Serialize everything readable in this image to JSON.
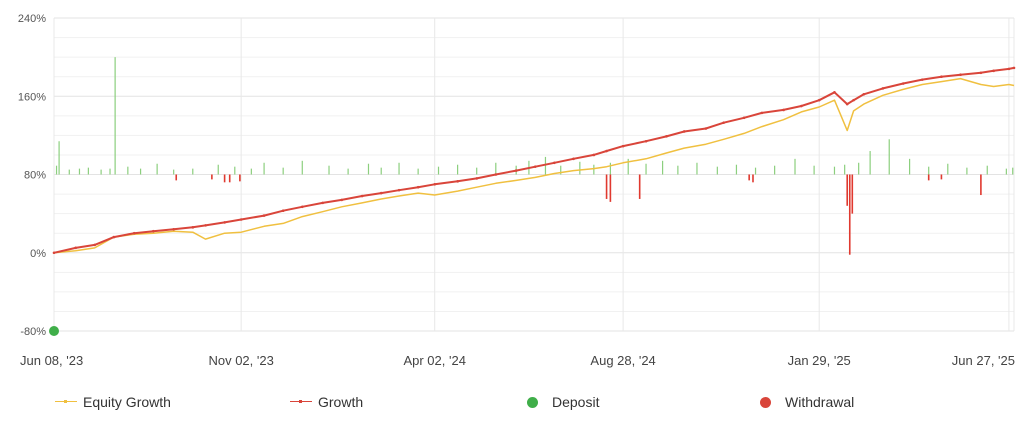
{
  "chart_data": {
    "type": "line",
    "title": "",
    "xlabel": "",
    "ylabel": "",
    "x_ticks": [
      "Jun 08, '23",
      "Nov 02, '23",
      "Apr 02, '24",
      "Aug 28, '24",
      "Jan 29, '25",
      "Jun 27, '25"
    ],
    "x_range": [
      "2023-06-08",
      "2025-07-01"
    ],
    "y_ticks": [
      "240%",
      "160%",
      "80%",
      "0%",
      "-80%"
    ],
    "y_range": [
      -80,
      240
    ],
    "grid": true,
    "legend_position": "bottom",
    "colors": {
      "equity": "#f0c040",
      "growth": "#d9453a",
      "deposit": "#3fae49",
      "withdrawal": "#d9453a",
      "volume_up": "#8ccf7e",
      "volume_down": "#e0392f",
      "grid": "#e8e8e8"
    },
    "series": [
      {
        "name": "Equity Growth",
        "x": [
          "2023-06-08",
          "2023-06-25",
          "2023-07-10",
          "2023-07-25",
          "2023-08-10",
          "2023-08-25",
          "2023-09-10",
          "2023-09-25",
          "2023-10-05",
          "2023-10-20",
          "2023-11-02",
          "2023-11-20",
          "2023-12-05",
          "2023-12-20",
          "2024-01-05",
          "2024-01-20",
          "2024-02-05",
          "2024-02-20",
          "2024-03-05",
          "2024-03-20",
          "2024-04-02",
          "2024-04-20",
          "2024-05-05",
          "2024-05-20",
          "2024-06-05",
          "2024-06-20",
          "2024-07-05",
          "2024-07-20",
          "2024-08-05",
          "2024-08-15",
          "2024-08-28",
          "2024-09-15",
          "2024-10-01",
          "2024-10-15",
          "2024-11-01",
          "2024-11-15",
          "2024-12-01",
          "2024-12-15",
          "2025-01-01",
          "2025-01-15",
          "2025-01-29",
          "2025-02-10",
          "2025-02-20",
          "2025-02-25",
          "2025-03-05",
          "2025-03-20",
          "2025-04-05",
          "2025-04-20",
          "2025-05-05",
          "2025-05-20",
          "2025-06-05",
          "2025-06-15",
          "2025-06-27",
          "2025-07-01"
        ],
        "y": [
          0,
          2,
          5,
          16,
          19,
          20,
          22,
          21,
          14,
          20,
          21,
          27,
          30,
          37,
          42,
          47,
          51,
          55,
          58,
          61,
          59,
          63,
          67,
          71,
          74,
          77,
          81,
          84,
          86,
          88,
          92,
          96,
          102,
          107,
          111,
          116,
          122,
          129,
          136,
          144,
          149,
          156,
          125,
          145,
          152,
          161,
          167,
          172,
          175,
          178,
          172,
          170,
          172,
          171
        ]
      },
      {
        "name": "Growth",
        "x": [
          "2023-06-08",
          "2023-06-25",
          "2023-07-10",
          "2023-07-25",
          "2023-08-10",
          "2023-08-25",
          "2023-09-10",
          "2023-09-25",
          "2023-10-05",
          "2023-10-20",
          "2023-11-02",
          "2023-11-20",
          "2023-12-05",
          "2023-12-20",
          "2024-01-05",
          "2024-01-20",
          "2024-02-05",
          "2024-02-20",
          "2024-03-05",
          "2024-03-20",
          "2024-04-02",
          "2024-04-20",
          "2024-05-05",
          "2024-05-20",
          "2024-06-05",
          "2024-06-20",
          "2024-07-05",
          "2024-07-20",
          "2024-08-05",
          "2024-08-15",
          "2024-08-28",
          "2024-09-15",
          "2024-10-01",
          "2024-10-15",
          "2024-11-01",
          "2024-11-15",
          "2024-12-01",
          "2024-12-15",
          "2025-01-01",
          "2025-01-15",
          "2025-01-29",
          "2025-02-10",
          "2025-02-20",
          "2025-02-25",
          "2025-03-05",
          "2025-03-20",
          "2025-04-05",
          "2025-04-20",
          "2025-05-05",
          "2025-05-20",
          "2025-06-05",
          "2025-06-15",
          "2025-06-27",
          "2025-07-01"
        ],
        "y": [
          0,
          5,
          8,
          16,
          20,
          22,
          24,
          26,
          28,
          31,
          34,
          38,
          43,
          47,
          51,
          54,
          58,
          61,
          64,
          67,
          70,
          73,
          76,
          80,
          84,
          88,
          92,
          96,
          100,
          104,
          109,
          114,
          119,
          124,
          127,
          133,
          138,
          143,
          146,
          150,
          156,
          164,
          152,
          156,
          162,
          168,
          173,
          177,
          180,
          182,
          184,
          186,
          188,
          189
        ]
      }
    ],
    "deposits": [
      {
        "x": "2023-06-08",
        "y": -80
      }
    ],
    "volume_up": [
      {
        "x": "2023-06-10",
        "h": 9
      },
      {
        "x": "2023-06-12",
        "h": 34
      },
      {
        "x": "2023-06-20",
        "h": 5
      },
      {
        "x": "2023-06-28",
        "h": 6
      },
      {
        "x": "2023-07-05",
        "h": 7
      },
      {
        "x": "2023-07-15",
        "h": 5
      },
      {
        "x": "2023-07-22",
        "h": 6
      },
      {
        "x": "2023-07-26",
        "h": 120
      },
      {
        "x": "2023-08-05",
        "h": 8
      },
      {
        "x": "2023-08-15",
        "h": 6
      },
      {
        "x": "2023-08-28",
        "h": 11
      },
      {
        "x": "2023-09-10",
        "h": 5
      },
      {
        "x": "2023-09-25",
        "h": 6
      },
      {
        "x": "2023-10-15",
        "h": 10
      },
      {
        "x": "2023-10-28",
        "h": 8
      },
      {
        "x": "2023-11-10",
        "h": 6
      },
      {
        "x": "2023-11-20",
        "h": 12
      },
      {
        "x": "2023-12-05",
        "h": 7
      },
      {
        "x": "2023-12-20",
        "h": 14
      },
      {
        "x": "2024-01-10",
        "h": 9
      },
      {
        "x": "2024-01-25",
        "h": 6
      },
      {
        "x": "2024-02-10",
        "h": 11
      },
      {
        "x": "2024-02-20",
        "h": 7
      },
      {
        "x": "2024-03-05",
        "h": 12
      },
      {
        "x": "2024-03-20",
        "h": 6
      },
      {
        "x": "2024-04-05",
        "h": 8
      },
      {
        "x": "2024-04-20",
        "h": 10
      },
      {
        "x": "2024-05-05",
        "h": 7
      },
      {
        "x": "2024-05-20",
        "h": 12
      },
      {
        "x": "2024-06-05",
        "h": 9
      },
      {
        "x": "2024-06-15",
        "h": 14
      },
      {
        "x": "2024-06-28",
        "h": 18
      },
      {
        "x": "2024-07-10",
        "h": 9
      },
      {
        "x": "2024-07-25",
        "h": 13
      },
      {
        "x": "2024-08-05",
        "h": 10
      },
      {
        "x": "2024-08-18",
        "h": 12
      },
      {
        "x": "2024-09-01",
        "h": 16
      },
      {
        "x": "2024-09-15",
        "h": 11
      },
      {
        "x": "2024-09-28",
        "h": 14
      },
      {
        "x": "2024-10-10",
        "h": 9
      },
      {
        "x": "2024-10-25",
        "h": 12
      },
      {
        "x": "2024-11-10",
        "h": 8
      },
      {
        "x": "2024-11-25",
        "h": 10
      },
      {
        "x": "2024-12-10",
        "h": 7
      },
      {
        "x": "2024-12-25",
        "h": 9
      },
      {
        "x": "2025-01-10",
        "h": 16
      },
      {
        "x": "2025-01-25",
        "h": 9
      },
      {
        "x": "2025-02-10",
        "h": 8
      },
      {
        "x": "2025-02-18",
        "h": 10
      },
      {
        "x": "2025-03-01",
        "h": 12
      },
      {
        "x": "2025-03-10",
        "h": 24
      },
      {
        "x": "2025-03-25",
        "h": 36
      },
      {
        "x": "2025-04-10",
        "h": 16
      },
      {
        "x": "2025-04-25",
        "h": 8
      },
      {
        "x": "2025-05-10",
        "h": 11
      },
      {
        "x": "2025-05-25",
        "h": 7
      },
      {
        "x": "2025-06-10",
        "h": 9
      },
      {
        "x": "2025-06-25",
        "h": 6
      },
      {
        "x": "2025-06-30",
        "h": 7
      }
    ],
    "volume_down": [
      {
        "x": "2023-09-12",
        "h": 6
      },
      {
        "x": "2023-10-10",
        "h": 5
      },
      {
        "x": "2023-10-20",
        "h": 8
      },
      {
        "x": "2023-10-24",
        "h": 8
      },
      {
        "x": "2023-11-01",
        "h": 7
      },
      {
        "x": "2024-08-15",
        "h": 25
      },
      {
        "x": "2024-08-18",
        "h": 28
      },
      {
        "x": "2024-09-10",
        "h": 25
      },
      {
        "x": "2024-12-05",
        "h": 6
      },
      {
        "x": "2024-12-08",
        "h": 8
      },
      {
        "x": "2025-02-20",
        "h": 32
      },
      {
        "x": "2025-02-22",
        "h": 82
      },
      {
        "x": "2025-02-24",
        "h": 40
      },
      {
        "x": "2025-04-25",
        "h": 6
      },
      {
        "x": "2025-05-05",
        "h": 5
      },
      {
        "x": "2025-06-05",
        "h": 21
      }
    ]
  },
  "legend": {
    "equity": "Equity Growth",
    "growth": "Growth",
    "deposit": "Deposit",
    "withdrawal": "Withdrawal"
  }
}
